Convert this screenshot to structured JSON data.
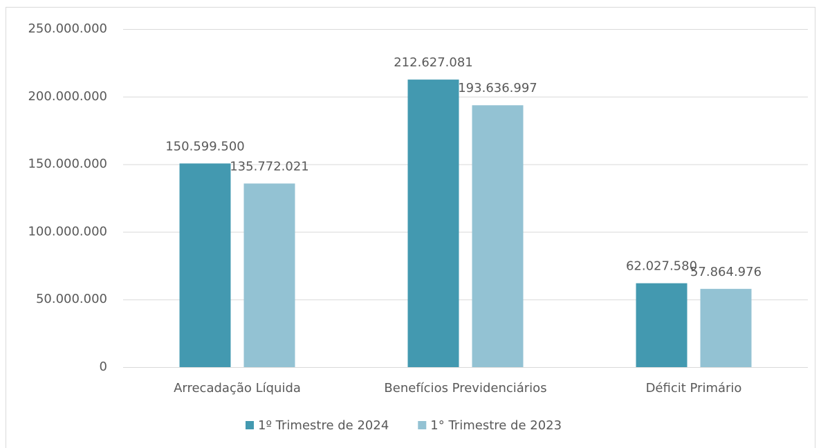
{
  "chart_data": {
    "type": "bar",
    "categories": [
      "Arrecadação Líquida",
      "Benefícios Previdenciários",
      "Déficit Primário"
    ],
    "series": [
      {
        "name": "1º Trimestre de 2024",
        "color": "#4399b0",
        "values": [
          150599500,
          212627081,
          62027580
        ],
        "value_labels": [
          "150.599.500",
          "212.627.081",
          "62.027.580"
        ]
      },
      {
        "name": "1° Trimestre de 2023",
        "color": "#93c2d3",
        "values": [
          135772021,
          193636997,
          57864976
        ],
        "value_labels": [
          "135.772.021",
          "193.636.997",
          "57.864.976"
        ]
      }
    ],
    "ylim": [
      0,
      250000000
    ],
    "yticks": [
      0,
      {
        "value": 50000000,
        "label": "50.000.000"
      },
      {
        "value": 100000000,
        "label": "100.000.000"
      },
      {
        "value": 150000000,
        "label": "150.000.000"
      },
      {
        "value": 200000000,
        "label": "200.000.000"
      },
      {
        "value": 250000000,
        "label": "250.000.000"
      }
    ],
    "grid": true,
    "legend": "bottom"
  }
}
